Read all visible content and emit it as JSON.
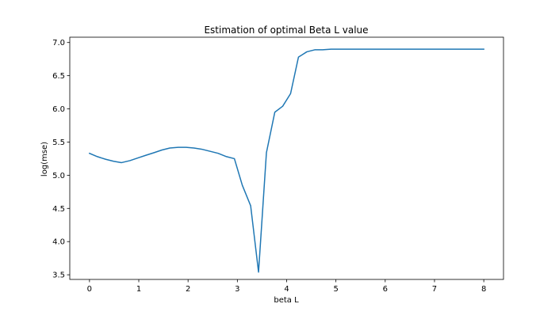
{
  "chart_data": {
    "type": "line",
    "title": "Estimation of optimal Beta L value",
    "xlabel": "beta L",
    "ylabel": "log(mse)",
    "xlim": [
      -0.4,
      8.4
    ],
    "ylim": [
      3.43,
      7.08
    ],
    "xticks": [
      0,
      1,
      2,
      3,
      4,
      5,
      6,
      7,
      8
    ],
    "xtick_labels": [
      "0",
      "1",
      "2",
      "3",
      "4",
      "5",
      "6",
      "7",
      "8"
    ],
    "yticks": [
      3.5,
      4.0,
      4.5,
      5.0,
      5.5,
      6.0,
      6.5,
      7.0
    ],
    "ytick_labels": [
      "3.5",
      "4.0",
      "4.5",
      "5.0",
      "5.5",
      "6.0",
      "6.5",
      "7.0"
    ],
    "grid": false,
    "legend": "none",
    "series": [
      {
        "color": "#1f77b4",
        "x": [
          0,
          0.16,
          0.33,
          0.49,
          0.65,
          0.82,
          0.98,
          1.14,
          1.31,
          1.47,
          1.63,
          1.8,
          1.96,
          2.12,
          2.29,
          2.45,
          2.61,
          2.78,
          2.94,
          3.1,
          3.27,
          3.43,
          3.59,
          3.76,
          3.92,
          4.08,
          4.24,
          4.41,
          4.57,
          4.73,
          4.9,
          5.06,
          5.5,
          6.0,
          6.5,
          7.0,
          7.5,
          8.0
        ],
        "y": [
          5.33,
          5.28,
          5.24,
          5.21,
          5.19,
          5.22,
          5.26,
          5.3,
          5.34,
          5.38,
          5.41,
          5.42,
          5.42,
          5.41,
          5.39,
          5.36,
          5.33,
          5.28,
          5.25,
          4.85,
          4.54,
          3.54,
          5.34,
          5.95,
          6.04,
          6.23,
          6.78,
          6.86,
          6.89,
          6.89,
          6.9,
          6.9,
          6.9,
          6.9,
          6.9,
          6.9,
          6.9,
          6.9
        ]
      }
    ]
  }
}
